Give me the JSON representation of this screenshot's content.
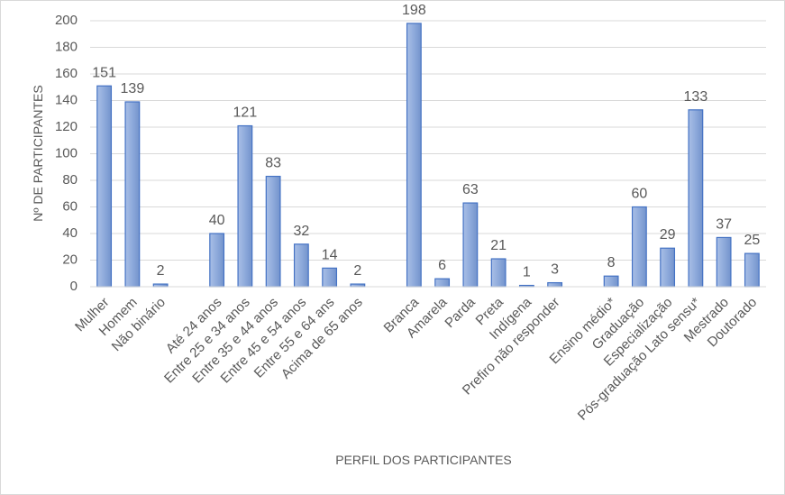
{
  "chart_data": {
    "type": "bar",
    "x_label": "PERFIL DOS PARTICIPANTES",
    "y_label": "Nº DE PARTICIPANTES",
    "categories": [
      "Mulher",
      "Homem",
      "Não binário",
      null,
      "Até 24 anos",
      "Entre 25 e 34 anos",
      "Entre 35 e 44 anos",
      "Entre 45 e 54 anos",
      "Entre 55 e 64 ans",
      "Acima de 65 anos",
      null,
      "Branca",
      "Amarela",
      "Parda",
      "Preta",
      "Indígena",
      "Prefiro não responder",
      null,
      "Ensino médio*",
      "Graduação",
      "Especialização",
      "Pós-graduação Lato sensu*",
      "Mestrado",
      "Doutorado"
    ],
    "values": [
      151,
      139,
      2,
      null,
      40,
      121,
      83,
      32,
      14,
      2,
      null,
      198,
      6,
      63,
      21,
      1,
      3,
      null,
      8,
      60,
      29,
      133,
      37,
      25
    ],
    "color": "#8eaadb",
    "ylim": [
      0,
      200
    ],
    "yticks": [
      0,
      20,
      40,
      60,
      80,
      100,
      120,
      140,
      160,
      180,
      200
    ],
    "grid": true
  }
}
